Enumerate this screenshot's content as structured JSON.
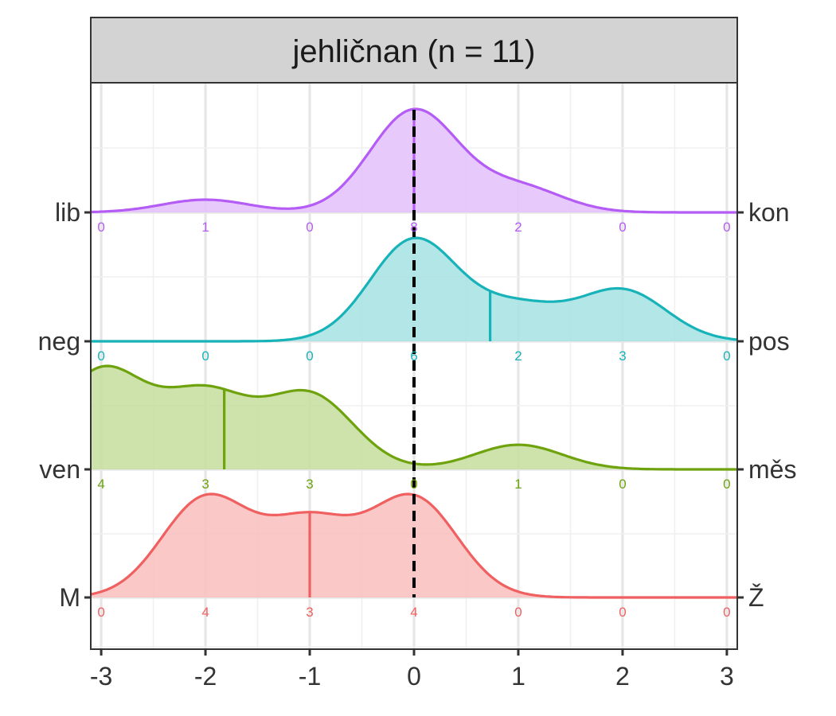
{
  "chart_data": {
    "type": "ridgeline-density",
    "title": "jehličnan (n = 11)",
    "xlim": [
      -3,
      3
    ],
    "x_ticks": [
      -3,
      -2,
      -1,
      0,
      1,
      2,
      3
    ],
    "x_tick_labels": [
      "-3",
      "-2",
      "-1",
      "0",
      "1",
      "2",
      "3"
    ],
    "reference_line_x": 0,
    "grid": true,
    "series": [
      {
        "left_label": "lib",
        "right_label": "kon",
        "color": "#B45CF5",
        "fill": "#E3BFFC",
        "counts": [
          0,
          1,
          0,
          8,
          2,
          0,
          0
        ],
        "mean": 0.0
      },
      {
        "left_label": "neg",
        "right_label": "pos",
        "color": "#17B3B8",
        "fill": "#A6E2E3",
        "counts": [
          0,
          0,
          0,
          6,
          2,
          3,
          0
        ],
        "mean": 0.73
      },
      {
        "left_label": "ven",
        "right_label": "měs",
        "color": "#6EA30E",
        "fill": "#C5DD9E",
        "counts": [
          4,
          3,
          3,
          0,
          1,
          0,
          0
        ],
        "mean": -1.82
      },
      {
        "left_label": "M",
        "right_label": "Ž",
        "color": "#F06060",
        "fill": "#F8BEBD",
        "counts": [
          0,
          4,
          3,
          4,
          0,
          0,
          0
        ],
        "mean": -1.0
      }
    ]
  }
}
